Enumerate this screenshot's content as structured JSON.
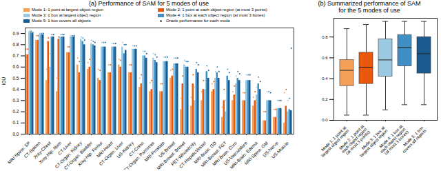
{
  "chart_data": [
    {
      "type": "bar",
      "title": "(a) Performance of SAM for 5 modes of use",
      "y_label": "IOU",
      "categories": [
        "MRI-Spine: SP",
        "CT-Spleen",
        "Xray-Chest",
        "Xray-Hip: Ilium",
        "CT-Liver",
        "CT-Organ: Kidney",
        "CT-Organ: Bladder",
        "Xray-Hip: Femur",
        "MRI-Heart",
        "CT-Organ: Liver",
        "US-Kidney",
        "CT-Colon",
        "CT-Organ: Pancreas",
        "MRI-Prostate",
        "US-Breast",
        "MRI-Breast: Breast",
        "PET-Wholebody",
        "CT-HepaticVessel",
        "MRI-Brain: GD",
        "MRI-Breast: FGT",
        "MRI-Brain: Coro",
        "US-Vasculature",
        "MRI-Brain: Edema",
        "MRI-Spine: GM",
        "US-Nerve",
        "US-Muscle"
      ],
      "series": [
        {
          "name": "Mode 1: 1 point at largest object region",
          "color": "#f5a05a",
          "values": [
            0.71,
            0.84,
            0.48,
            0.38,
            0.73,
            0.62,
            0.58,
            0.5,
            0.55,
            0.62,
            0.55,
            0.42,
            0.38,
            0.38,
            0.5,
            0.22,
            0.25,
            0.3,
            0.38,
            0.15,
            0.3,
            0.3,
            0.25,
            0.12,
            0.15,
            0.1
          ],
          "oracle_values": [
            0.76,
            0.88,
            0.58,
            0.5,
            0.78,
            0.68,
            0.64,
            0.58,
            0.62,
            0.67,
            0.62,
            0.5,
            0.46,
            0.45,
            0.57,
            0.32,
            0.33,
            0.38,
            0.45,
            0.24,
            0.38,
            0.37,
            0.33,
            0.2,
            0.22,
            0.37
          ]
        },
        {
          "name": "Mode 2: 1 point at each object region (at most 3 points)",
          "color": "#e8590c",
          "values": [
            0.71,
            0.84,
            0.83,
            0.85,
            0.73,
            0.55,
            0.6,
            0.48,
            0.55,
            0.6,
            0.55,
            0.45,
            0.4,
            0.38,
            0.52,
            0.45,
            0.45,
            0.4,
            0.4,
            0.3,
            0.35,
            0.3,
            0.3,
            0.12,
            0.15,
            0.25
          ],
          "oracle_values": [
            0.76,
            0.88,
            0.86,
            0.87,
            0.78,
            0.65,
            0.67,
            0.57,
            0.62,
            0.66,
            0.62,
            0.53,
            0.48,
            0.45,
            0.58,
            0.52,
            0.53,
            0.48,
            0.47,
            0.4,
            0.43,
            0.37,
            0.38,
            0.2,
            0.22,
            0.4
          ]
        },
        {
          "name": "Mode 3: 1 box at largest object region",
          "color": "#9cc9e2",
          "values": [
            0.91,
            0.89,
            0.6,
            0.87,
            0.87,
            0.85,
            0.81,
            0.78,
            0.78,
            0.78,
            0.76,
            0.7,
            0.68,
            0.65,
            0.63,
            0.62,
            0.3,
            0.4,
            0.5,
            0.2,
            0.45,
            0.48,
            0.35,
            0.3,
            0.23,
            0.2
          ],
          "oracle_values": [
            0.92,
            0.9,
            0.72,
            0.89,
            0.88,
            0.87,
            0.84,
            0.82,
            0.81,
            0.82,
            0.79,
            0.74,
            0.72,
            0.69,
            0.68,
            0.66,
            0.42,
            0.48,
            0.56,
            0.3,
            0.52,
            0.53,
            0.42,
            0.38,
            0.3,
            0.3
          ]
        },
        {
          "name": "Mode 4: 1 box at each object region (at most 3 boxes)",
          "color": "#3f8fc5",
          "values": [
            0.91,
            0.89,
            0.87,
            0.87,
            0.87,
            0.83,
            0.8,
            0.78,
            0.78,
            0.72,
            0.76,
            0.7,
            0.66,
            0.65,
            0.63,
            0.6,
            0.58,
            0.56,
            0.55,
            0.52,
            0.5,
            0.48,
            0.45,
            0.3,
            0.23,
            0.22
          ],
          "oracle_values": [
            0.92,
            0.9,
            0.89,
            0.89,
            0.88,
            0.86,
            0.83,
            0.82,
            0.81,
            0.8,
            0.79,
            0.74,
            0.71,
            0.69,
            0.68,
            0.65,
            0.64,
            0.61,
            0.6,
            0.58,
            0.56,
            0.53,
            0.51,
            0.38,
            0.3,
            0.32
          ]
        },
        {
          "name": "Mode 5: 1 box covers all objects",
          "color": "#1a5a8e",
          "values": [
            0.9,
            0.89,
            0.87,
            0.87,
            0.87,
            0.8,
            0.79,
            0.78,
            0.78,
            0.75,
            0.76,
            0.68,
            0.64,
            0.65,
            0.63,
            0.6,
            0.55,
            0.5,
            0.5,
            0.48,
            0.48,
            0.48,
            0.4,
            0.3,
            0.23,
            0.21
          ],
          "oracle_values": [
            0.91,
            0.9,
            0.89,
            0.89,
            0.88,
            0.84,
            0.82,
            0.82,
            0.81,
            0.8,
            0.79,
            0.72,
            0.69,
            0.69,
            0.68,
            0.65,
            0.62,
            0.57,
            0.56,
            0.55,
            0.54,
            0.53,
            0.47,
            0.37,
            0.3,
            0.77
          ]
        }
      ],
      "oracle": {
        "name": "Oracle performance for each mode",
        "marker": "dot"
      },
      "ylim": [
        0,
        0.95
      ],
      "yticks": [
        {
          "value": 0,
          "label": "0.0"
        },
        0.1,
        0.2,
        0.3,
        0.4,
        0.5,
        0.6,
        0.7,
        0.8,
        0.9
      ],
      "grid": false,
      "legend": "top"
    },
    {
      "type": "box",
      "title": "(b) Summarized performance of SAM\nfor the 5 modes of use",
      "categories": [
        "Mode 1: 1 point at\nlargest object region",
        "Mode 2: 1 point at\neach object region\n(at most 3 points)",
        "Mode 3: 1 box at\nlargest object region",
        "Mode 4: 1 box at\neach object region\n(at most 3 boxes)",
        "Mode 5: 1 box\ncovers all objects"
      ],
      "colors": [
        "#f5a05a",
        "#e8590c",
        "#9cc9e2",
        "#3f8fc5",
        "#1a5a8e"
      ],
      "min": [
        0.05,
        0.05,
        0.1,
        0.15,
        0.15
      ],
      "q1": [
        0.33,
        0.35,
        0.42,
        0.52,
        0.45
      ],
      "median": [
        0.48,
        0.51,
        0.58,
        0.7,
        0.64
      ],
      "q3": [
        0.58,
        0.65,
        0.78,
        0.82,
        0.8
      ],
      "max": [
        0.88,
        0.92,
        0.95,
        0.95,
        0.95
      ],
      "ylim": [
        0,
        0.98
      ],
      "yticks": [
        {
          "value": 0,
          "label": "0.0"
        },
        0.2,
        0.4,
        0.6,
        0.8
      ],
      "grid": false
    }
  ]
}
